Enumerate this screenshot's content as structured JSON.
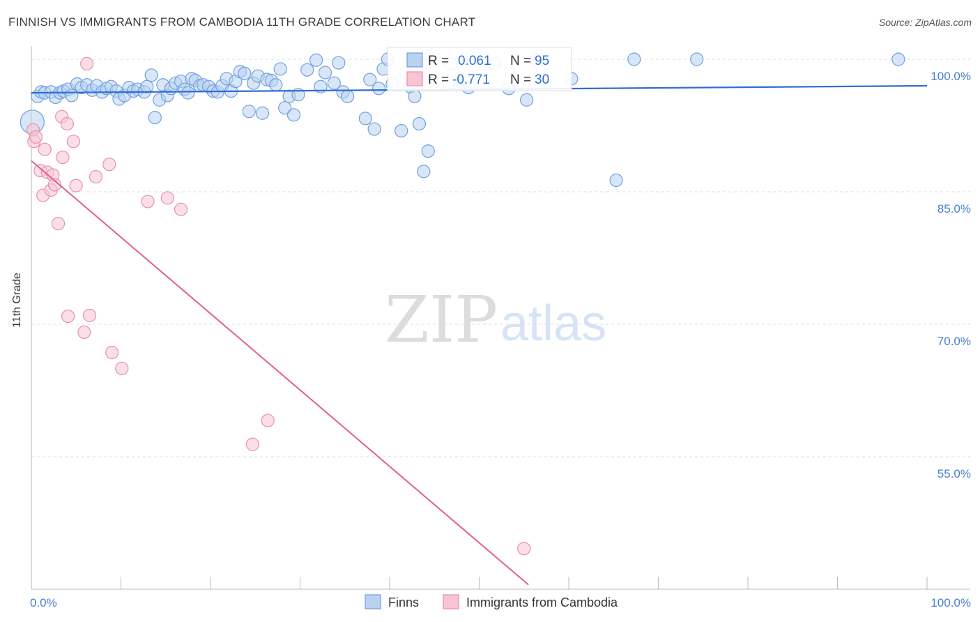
{
  "title": "FINNISH VS IMMIGRANTS FROM CAMBODIA 11TH GRADE CORRELATION CHART",
  "source": "Source: ZipAtlas.com",
  "watermark": {
    "zip": "ZIP",
    "atlas": "atlas"
  },
  "colors": {
    "finns": "#6fa0e0",
    "finns_fill": "#b9d2f2",
    "cambodia": "#e98fae",
    "cambodia_fill": "#f6c4d4",
    "finns_line": "#2f6fd0",
    "cambodia_line": "#e0608a",
    "grid": "#dddddd"
  },
  "legend": {
    "r_label": "R =",
    "n_label": "N =",
    "finns": {
      "r": "0.061",
      "n": "95"
    },
    "cambodia": {
      "r": "-0.771",
      "n": "30"
    }
  },
  "chart_data": {
    "type": "scatter",
    "title": "FINNISH VS IMMIGRANTS FROM CAMBODIA 11TH GRADE CORRELATION CHART",
    "xlabel": "",
    "ylabel": "11th Grade",
    "xlim": [
      0,
      100
    ],
    "ylim": [
      40,
      101.5
    ],
    "x_tick_labels": [
      "0.0%",
      "100.0%"
    ],
    "y_ticks": [
      55,
      70,
      85,
      100
    ],
    "y_tick_labels": [
      "55.0%",
      "70.0%",
      "85.0%",
      "100.0%"
    ],
    "legend_position": "top-center",
    "series": [
      {
        "name": "Finns",
        "trend": {
          "x": [
            0,
            100
          ],
          "y": [
            96.2,
            97.0
          ]
        },
        "points": [
          [
            0.1,
            92.9
          ],
          [
            0.7,
            95.8
          ],
          [
            1.1,
            96.3
          ],
          [
            1.5,
            96.2
          ],
          [
            2.2,
            96.3
          ],
          [
            2.7,
            95.7
          ],
          [
            3.2,
            96.2
          ],
          [
            3.6,
            96.4
          ],
          [
            4.1,
            96.6
          ],
          [
            4.5,
            95.9
          ],
          [
            5.1,
            97.2
          ],
          [
            5.6,
            96.8
          ],
          [
            6.2,
            97.1
          ],
          [
            6.8,
            96.5
          ],
          [
            7.3,
            97.0
          ],
          [
            7.9,
            96.3
          ],
          [
            8.4,
            96.7
          ],
          [
            8.9,
            96.9
          ],
          [
            9.5,
            96.4
          ],
          [
            9.8,
            95.5
          ],
          [
            10.4,
            95.9
          ],
          [
            10.9,
            96.8
          ],
          [
            11.4,
            96.4
          ],
          [
            11.9,
            96.6
          ],
          [
            12.6,
            96.3
          ],
          [
            12.9,
            96.9
          ],
          [
            13.4,
            98.2
          ],
          [
            13.8,
            93.4
          ],
          [
            14.3,
            95.4
          ],
          [
            14.7,
            97.1
          ],
          [
            15.2,
            95.9
          ],
          [
            15.6,
            96.7
          ],
          [
            16.1,
            97.3
          ],
          [
            16.7,
            97.5
          ],
          [
            17.1,
            96.6
          ],
          [
            17.5,
            96.2
          ],
          [
            17.9,
            97.8
          ],
          [
            18.3,
            97.6
          ],
          [
            18.8,
            97.0
          ],
          [
            19.2,
            97.1
          ],
          [
            19.8,
            96.9
          ],
          [
            20.3,
            96.4
          ],
          [
            20.8,
            96.3
          ],
          [
            21.3,
            97.0
          ],
          [
            21.8,
            97.8
          ],
          [
            22.3,
            96.4
          ],
          [
            22.8,
            97.5
          ],
          [
            23.3,
            98.6
          ],
          [
            23.8,
            98.4
          ],
          [
            24.3,
            94.1
          ],
          [
            24.8,
            97.3
          ],
          [
            25.3,
            98.1
          ],
          [
            25.8,
            93.9
          ],
          [
            26.3,
            97.7
          ],
          [
            26.8,
            97.6
          ],
          [
            27.3,
            97.1
          ],
          [
            27.8,
            98.9
          ],
          [
            28.3,
            94.5
          ],
          [
            28.8,
            95.8
          ],
          [
            29.3,
            93.7
          ],
          [
            29.8,
            96.0
          ],
          [
            30.8,
            98.8
          ],
          [
            31.8,
            99.9
          ],
          [
            32.3,
            96.9
          ],
          [
            32.8,
            98.5
          ],
          [
            33.8,
            97.3
          ],
          [
            34.3,
            99.6
          ],
          [
            34.8,
            96.3
          ],
          [
            35.3,
            95.8
          ],
          [
            37.3,
            93.3
          ],
          [
            37.8,
            97.7
          ],
          [
            38.3,
            92.1
          ],
          [
            38.8,
            96.7
          ],
          [
            39.3,
            98.9
          ],
          [
            39.8,
            100.0
          ],
          [
            40.3,
            97.2
          ],
          [
            41.3,
            91.9
          ],
          [
            41.8,
            98.5
          ],
          [
            42.3,
            96.9
          ],
          [
            42.8,
            95.8
          ],
          [
            43.3,
            92.7
          ],
          [
            43.8,
            87.3
          ],
          [
            44.3,
            89.6
          ],
          [
            46.8,
            99.5
          ],
          [
            47.8,
            97.2
          ],
          [
            48.8,
            96.8
          ],
          [
            51.8,
            99.5
          ],
          [
            53.3,
            96.7
          ],
          [
            55.3,
            95.4
          ],
          [
            56.3,
            100.0
          ],
          [
            60.3,
            97.8
          ],
          [
            65.3,
            86.3
          ],
          [
            67.3,
            100.0
          ],
          [
            74.3,
            100.0
          ],
          [
            96.8,
            100.0
          ]
        ]
      },
      {
        "name": "Immigrants from Cambodia",
        "trend": {
          "x": [
            0,
            55.5
          ],
          "y": [
            88.5,
            40.5
          ]
        },
        "points": [
          [
            0.2,
            92.0
          ],
          [
            0.3,
            90.7
          ],
          [
            0.5,
            91.2
          ],
          [
            1.0,
            87.4
          ],
          [
            1.3,
            84.6
          ],
          [
            1.5,
            89.8
          ],
          [
            1.8,
            87.2
          ],
          [
            2.2,
            85.2
          ],
          [
            2.4,
            86.9
          ],
          [
            2.6,
            85.8
          ],
          [
            3.0,
            81.4
          ],
          [
            3.4,
            93.5
          ],
          [
            3.5,
            88.9
          ],
          [
            4.0,
            92.7
          ],
          [
            4.1,
            70.9
          ],
          [
            4.7,
            90.7
          ],
          [
            5.0,
            85.7
          ],
          [
            5.9,
            69.1
          ],
          [
            6.2,
            99.5
          ],
          [
            6.5,
            71.0
          ],
          [
            7.2,
            86.7
          ],
          [
            8.7,
            88.1
          ],
          [
            9.0,
            66.8
          ],
          [
            10.1,
            65.0
          ],
          [
            13.0,
            83.9
          ],
          [
            15.2,
            84.3
          ],
          [
            16.7,
            83.0
          ],
          [
            24.7,
            56.4
          ],
          [
            26.4,
            59.1
          ],
          [
            55.0,
            44.6
          ]
        ]
      }
    ]
  },
  "bottom_legend": {
    "finns": "Finns",
    "cambodia": "Immigrants from Cambodia"
  }
}
